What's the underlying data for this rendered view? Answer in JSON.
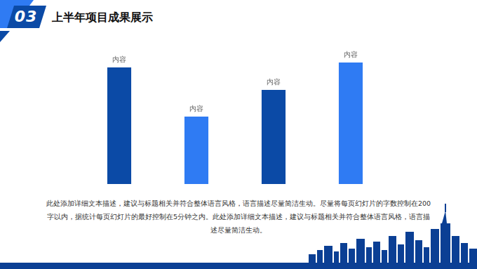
{
  "chart_data": {
    "type": "bar",
    "number": "03",
    "title": "上半年项目成果展示",
    "categories": [
      null,
      null,
      null,
      null
    ],
    "values": [
      166,
      96,
      134,
      173
    ],
    "annotations": [
      "内容",
      "内容",
      "内容",
      "内容"
    ],
    "colors": [
      "#0b4aa6",
      "#2f7bf3",
      "#0b4aa6",
      "#2f7bf3"
    ],
    "ylim": [
      0,
      180
    ],
    "yticks": [
      0,
      60,
      120,
      180
    ],
    "grid": false,
    "tick_labels": false,
    "description": "此处添加详细文本描述，建议与标题相关并符合整体语言风格，语言描述尽量简洁生动。尽量将每页幻灯片的字数控制在200字以内，据统计每页幻灯片的最好控制在5分钟之内。此处添加详细文本描述，建议与标题相关并符合整体语言风格，语言描述尽量简洁生动。"
  }
}
